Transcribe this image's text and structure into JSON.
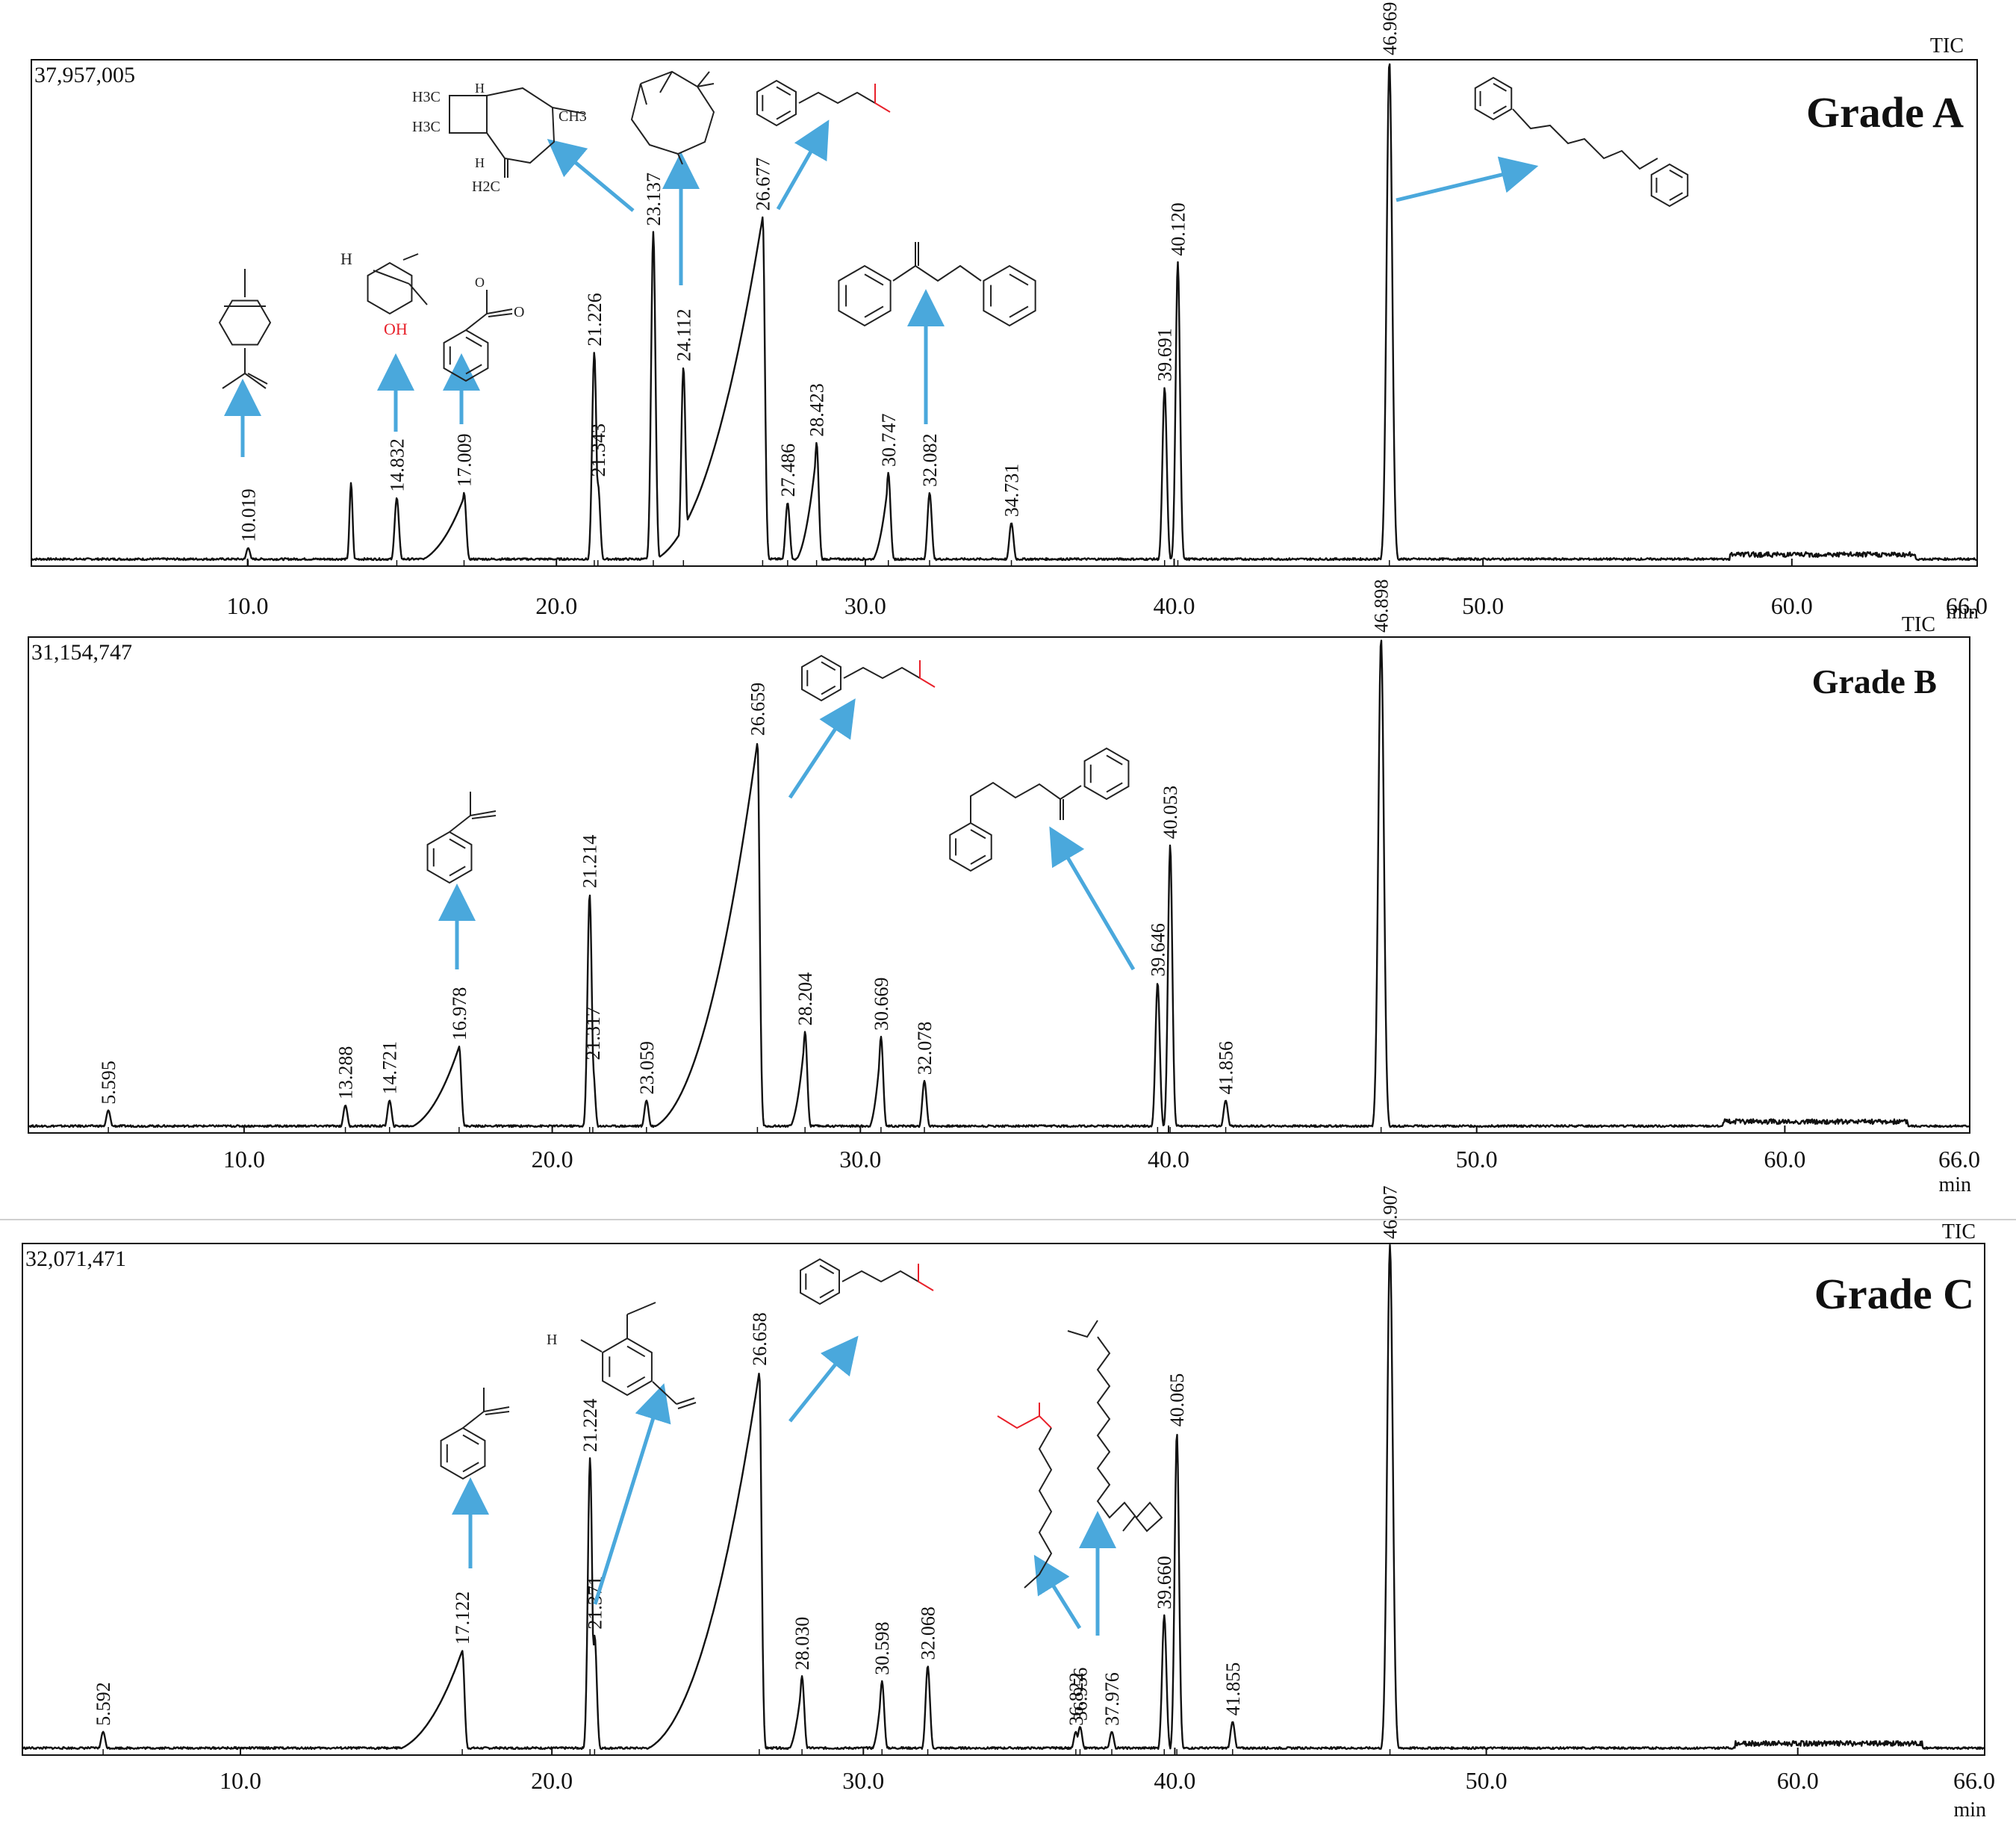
{
  "chart_data": [
    {
      "type": "line",
      "title": "Grade A",
      "signal_label": "TIC",
      "max_intensity_label": "37,957,005",
      "xlabel": "min",
      "xlim": [
        3.0,
        66.0
      ],
      "x_ticks": [
        "10.0",
        "20.0",
        "30.0",
        "40.0",
        "50.0",
        "60.0",
        "66.0"
      ],
      "peaks": [
        {
          "rt": 10.019,
          "label": "10.019",
          "height": 0.03
        },
        {
          "rt": 13.35,
          "label": "",
          "height": 0.16
        },
        {
          "rt": 14.832,
          "label": "14.832",
          "height": 0.13
        },
        {
          "rt": 17.009,
          "label": "17.009",
          "height": 0.14
        },
        {
          "rt": 21.226,
          "label": "21.226",
          "height": 0.42
        },
        {
          "rt": 21.343,
          "label": "21.343",
          "height": 0.16
        },
        {
          "rt": 23.137,
          "label": "23.137",
          "height": 0.66
        },
        {
          "rt": 24.112,
          "label": "24.112",
          "height": 0.39
        },
        {
          "rt": 26.677,
          "label": "26.677",
          "height": 0.69
        },
        {
          "rt": 27.486,
          "label": "27.486",
          "height": 0.12
        },
        {
          "rt": 28.423,
          "label": "28.423",
          "height": 0.24
        },
        {
          "rt": 30.747,
          "label": "30.747",
          "height": 0.18
        },
        {
          "rt": 32.082,
          "label": "32.082",
          "height": 0.14
        },
        {
          "rt": 34.731,
          "label": "34.731",
          "height": 0.08
        },
        {
          "rt": 39.691,
          "label": "39.691",
          "height": 0.35
        },
        {
          "rt": 40.12,
          "label": "40.120",
          "height": 0.6
        },
        {
          "rt": 46.969,
          "label": "46.969",
          "height": 1.0
        }
      ]
    },
    {
      "type": "line",
      "title": "Grade B",
      "signal_label": "TIC",
      "max_intensity_label": "31,154,747",
      "xlabel": "min",
      "xlim": [
        3.0,
        66.0
      ],
      "x_ticks": [
        "10.0",
        "20.0",
        "30.0",
        "40.0",
        "50.0",
        "60.0",
        "66.0"
      ],
      "peaks": [
        {
          "rt": 5.595,
          "label": "5.595",
          "height": 0.04
        },
        {
          "rt": 13.288,
          "label": "13.288",
          "height": 0.05
        },
        {
          "rt": 14.721,
          "label": "14.721",
          "height": 0.06
        },
        {
          "rt": 16.978,
          "label": "16.978",
          "height": 0.17
        },
        {
          "rt": 21.214,
          "label": "21.214",
          "height": 0.48
        },
        {
          "rt": 21.317,
          "label": "21.317",
          "height": 0.13
        },
        {
          "rt": 23.059,
          "label": "23.059",
          "height": 0.06
        },
        {
          "rt": 26.659,
          "label": "26.659",
          "height": 0.79
        },
        {
          "rt": 28.204,
          "label": "28.204",
          "height": 0.2
        },
        {
          "rt": 30.669,
          "label": "30.669",
          "height": 0.19
        },
        {
          "rt": 32.078,
          "label": "32.078",
          "height": 0.1
        },
        {
          "rt": 39.646,
          "label": "39.646",
          "height": 0.3
        },
        {
          "rt": 40.053,
          "label": "40.053",
          "height": 0.58
        },
        {
          "rt": 41.856,
          "label": "41.856",
          "height": 0.06
        },
        {
          "rt": 46.898,
          "label": "46.898",
          "height": 1.0
        }
      ]
    },
    {
      "type": "line",
      "title": "Grade C",
      "signal_label": "TIC",
      "max_intensity_label": "32,071,471",
      "xlabel": "min",
      "xlim": [
        3.0,
        66.0
      ],
      "x_ticks": [
        "10.0",
        "20.0",
        "30.0",
        "40.0",
        "50.0",
        "60.0",
        "66.0"
      ],
      "peaks": [
        {
          "rt": 5.592,
          "label": "5.592",
          "height": 0.04
        },
        {
          "rt": 17.122,
          "label": "17.122",
          "height": 0.2
        },
        {
          "rt": 21.224,
          "label": "21.224",
          "height": 0.58
        },
        {
          "rt": 21.371,
          "label": "21.371",
          "height": 0.23
        },
        {
          "rt": 26.658,
          "label": "26.658",
          "height": 0.75
        },
        {
          "rt": 28.03,
          "label": "28.030",
          "height": 0.15
        },
        {
          "rt": 30.598,
          "label": "30.598",
          "height": 0.14
        },
        {
          "rt": 32.068,
          "label": "32.068",
          "height": 0.17
        },
        {
          "rt": 36.822,
          "label": "36.822",
          "height": 0.04
        },
        {
          "rt": 36.956,
          "label": "36.956",
          "height": 0.05
        },
        {
          "rt": 37.976,
          "label": "37.976",
          "height": 0.04
        },
        {
          "rt": 39.66,
          "label": "39.660",
          "height": 0.27
        },
        {
          "rt": 40.065,
          "label": "40.065",
          "height": 0.63
        },
        {
          "rt": 41.855,
          "label": "41.855",
          "height": 0.06
        },
        {
          "rt": 46.907,
          "label": "46.907",
          "height": 1.0
        }
      ]
    }
  ],
  "structure_atom_labels": {
    "h3c": "H3C",
    "ch3": "CH3",
    "h2c": "H2C",
    "oh": "OH",
    "h": "H",
    "o": "O"
  },
  "colors": {
    "line": "#111111",
    "arrow": "#4aa8dc",
    "hydroxyl": "#e8202a",
    "structure": "#222222"
  }
}
